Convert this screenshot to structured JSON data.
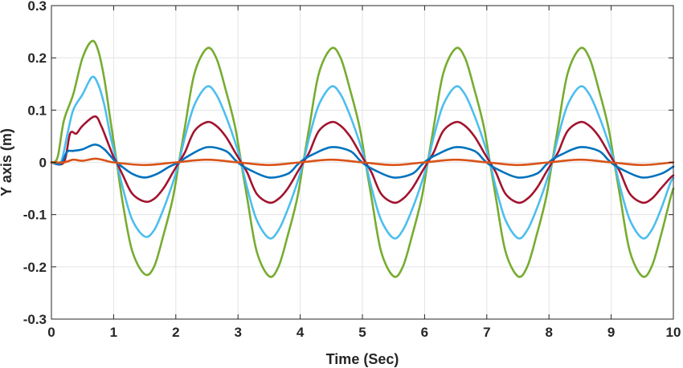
{
  "chart_data": {
    "type": "line",
    "title": "",
    "xlabel": "Time (Sec)",
    "ylabel": "Y axis (m)",
    "xlim": [
      0,
      10
    ],
    "ylim": [
      -0.3,
      0.3
    ],
    "xticks": [
      0,
      1,
      2,
      3,
      4,
      5,
      6,
      7,
      8,
      9,
      10
    ],
    "xtick_labels": [
      "0",
      "1",
      "2",
      "3",
      "4",
      "5",
      "6",
      "7",
      "8",
      "9",
      "10"
    ],
    "yticks": [
      -0.3,
      -0.2,
      -0.1,
      0,
      0.1,
      0.2,
      0.3
    ],
    "ytick_labels": [
      "-0.3",
      "-0.2",
      "-0.1",
      "0",
      "0.1",
      "0.2",
      "0.3"
    ],
    "grid": true,
    "legend": "none",
    "series": [
      {
        "color": "#77ac30",
        "x": [
          0,
          0.1,
          0.2,
          0.35,
          0.5,
          0.65,
          0.75,
          0.85,
          0.95,
          1.05,
          1.15,
          1.3,
          1.5,
          1.65,
          1.8,
          1.95,
          2.05,
          2.15,
          2.3,
          2.5,
          2.65,
          2.8,
          2.95,
          3.05,
          3.15,
          3.3,
          3.5,
          3.65,
          3.8,
          3.95,
          4.05,
          4.15,
          4.3,
          4.5,
          4.65,
          4.8,
          4.95,
          5.05,
          5.15,
          5.3,
          5.5,
          5.65,
          5.8,
          5.95,
          6.05,
          6.15,
          6.3,
          6.5,
          6.65,
          6.8,
          6.95,
          7.05,
          7.15,
          7.3,
          7.5,
          7.65,
          7.8,
          7.95,
          8.05,
          8.15,
          8.3,
          8.5,
          8.65,
          8.8,
          8.95,
          9.05,
          9.15,
          9.3,
          9.5,
          9.65,
          9.8,
          9.95,
          10
        ],
        "y": [
          0,
          0.01,
          0.08,
          0.13,
          0.2,
          0.232,
          0.215,
          0.16,
          0.08,
          0.0,
          -0.08,
          -0.17,
          -0.214,
          -0.2,
          -0.14,
          -0.07,
          0.0,
          0.07,
          0.17,
          0.218,
          0.2,
          0.14,
          0.07,
          0.0,
          -0.07,
          -0.17,
          -0.218,
          -0.2,
          -0.14,
          -0.07,
          0.0,
          0.07,
          0.17,
          0.218,
          0.2,
          0.14,
          0.07,
          0.0,
          -0.07,
          -0.17,
          -0.218,
          -0.2,
          -0.14,
          -0.07,
          0.0,
          0.07,
          0.17,
          0.218,
          0.2,
          0.14,
          0.07,
          0.0,
          -0.07,
          -0.17,
          -0.218,
          -0.2,
          -0.14,
          -0.07,
          0.0,
          0.07,
          0.17,
          0.218,
          0.2,
          0.14,
          0.07,
          0.0,
          -0.07,
          -0.17,
          -0.218,
          -0.2,
          -0.14,
          -0.07,
          -0.05
        ]
      },
      {
        "color": "#4dbeee",
        "x": [
          0,
          0.15,
          0.25,
          0.35,
          0.5,
          0.65,
          0.75,
          0.85,
          0.95,
          1.05,
          1.15,
          1.3,
          1.5,
          1.65,
          1.8,
          1.95,
          2.05,
          2.15,
          2.3,
          2.5,
          2.65,
          2.8,
          2.95,
          3.05,
          3.15,
          3.3,
          3.5,
          3.65,
          3.8,
          3.95,
          4.05,
          4.15,
          4.3,
          4.5,
          4.65,
          4.8,
          4.95,
          5.05,
          5.15,
          5.3,
          5.5,
          5.65,
          5.8,
          5.95,
          6.05,
          6.15,
          6.3,
          6.5,
          6.65,
          6.8,
          6.95,
          7.05,
          7.15,
          7.3,
          7.5,
          7.65,
          7.8,
          7.95,
          8.05,
          8.15,
          8.3,
          8.5,
          8.65,
          8.8,
          8.95,
          9.05,
          9.15,
          9.3,
          9.5,
          9.65,
          9.8,
          9.95,
          10
        ],
        "y": [
          0,
          0.0,
          0.05,
          0.1,
          0.13,
          0.163,
          0.15,
          0.11,
          0.05,
          0.0,
          -0.05,
          -0.11,
          -0.142,
          -0.13,
          -0.09,
          -0.04,
          0.0,
          0.05,
          0.11,
          0.145,
          0.13,
          0.09,
          0.04,
          0.0,
          -0.05,
          -0.11,
          -0.145,
          -0.13,
          -0.09,
          -0.04,
          0.0,
          0.05,
          0.11,
          0.145,
          0.13,
          0.09,
          0.04,
          0.0,
          -0.05,
          -0.11,
          -0.145,
          -0.13,
          -0.09,
          -0.04,
          0.0,
          0.05,
          0.11,
          0.145,
          0.13,
          0.09,
          0.04,
          0.0,
          -0.05,
          -0.11,
          -0.145,
          -0.13,
          -0.09,
          -0.04,
          0.0,
          0.05,
          0.11,
          0.145,
          0.13,
          0.09,
          0.04,
          0.0,
          -0.05,
          -0.11,
          -0.145,
          -0.13,
          -0.09,
          -0.04,
          -0.03
        ]
      },
      {
        "color": "#a2142f",
        "x": [
          0,
          0.2,
          0.3,
          0.4,
          0.5,
          0.7,
          0.8,
          0.9,
          1.0,
          1.05,
          1.15,
          1.3,
          1.5,
          1.65,
          1.8,
          1.95,
          2.05,
          2.15,
          2.3,
          2.5,
          2.65,
          2.8,
          2.95,
          3.05,
          3.15,
          3.3,
          3.5,
          3.65,
          3.8,
          3.95,
          4.05,
          4.15,
          4.3,
          4.5,
          4.65,
          4.8,
          4.95,
          5.05,
          5.15,
          5.3,
          5.5,
          5.65,
          5.8,
          5.95,
          6.05,
          6.15,
          6.3,
          6.5,
          6.65,
          6.8,
          6.95,
          7.05,
          7.15,
          7.3,
          7.5,
          7.65,
          7.8,
          7.95,
          8.05,
          8.15,
          8.3,
          8.5,
          8.65,
          8.8,
          8.95,
          9.05,
          9.15,
          9.3,
          9.5,
          9.65,
          9.8,
          9.95,
          10
        ],
        "y": [
          0,
          0.0,
          0.055,
          0.055,
          0.07,
          0.088,
          0.07,
          0.04,
          0.01,
          0.0,
          -0.025,
          -0.06,
          -0.075,
          -0.07,
          -0.05,
          -0.02,
          0.0,
          0.02,
          0.06,
          0.077,
          0.07,
          0.05,
          0.02,
          0.0,
          -0.02,
          -0.06,
          -0.077,
          -0.07,
          -0.05,
          -0.02,
          0.0,
          0.02,
          0.06,
          0.077,
          0.07,
          0.05,
          0.02,
          0.0,
          -0.02,
          -0.06,
          -0.077,
          -0.07,
          -0.05,
          -0.02,
          0.0,
          0.02,
          0.06,
          0.077,
          0.07,
          0.05,
          0.02,
          0.0,
          -0.02,
          -0.06,
          -0.077,
          -0.07,
          -0.05,
          -0.02,
          0.0,
          0.02,
          0.06,
          0.077,
          0.07,
          0.05,
          0.02,
          0.0,
          -0.02,
          -0.06,
          -0.077,
          -0.07,
          -0.05,
          -0.03,
          -0.025
        ]
      },
      {
        "color": "#0072bd",
        "x": [
          0,
          0.15,
          0.25,
          0.35,
          0.5,
          0.7,
          0.85,
          1.0,
          1.1,
          1.3,
          1.5,
          1.7,
          1.9,
          2.05,
          2.2,
          2.5,
          2.8,
          2.95,
          3.05,
          3.2,
          3.5,
          3.8,
          3.95,
          4.05,
          4.2,
          4.5,
          4.8,
          4.95,
          5.05,
          5.2,
          5.5,
          5.8,
          5.95,
          6.05,
          6.2,
          6.5,
          6.8,
          6.95,
          7.05,
          7.2,
          7.5,
          7.8,
          7.95,
          8.05,
          8.2,
          8.5,
          8.8,
          8.95,
          9.05,
          9.2,
          9.5,
          9.8,
          10
        ],
        "y": [
          0,
          -0.003,
          0.02,
          0.022,
          0.025,
          0.034,
          0.025,
          0.005,
          -0.005,
          -0.022,
          -0.029,
          -0.022,
          -0.008,
          0.0,
          0.012,
          0.029,
          0.022,
          0.005,
          -0.005,
          -0.015,
          -0.029,
          -0.022,
          -0.005,
          0.005,
          0.015,
          0.029,
          0.022,
          0.005,
          -0.005,
          -0.015,
          -0.029,
          -0.022,
          -0.005,
          0.005,
          0.015,
          0.029,
          0.022,
          0.005,
          -0.005,
          -0.015,
          -0.029,
          -0.022,
          -0.005,
          0.005,
          0.015,
          0.029,
          0.022,
          0.005,
          -0.005,
          -0.015,
          -0.029,
          -0.022,
          -0.008
        ]
      },
      {
        "color": "#d95319",
        "x": [
          0,
          0.2,
          0.35,
          0.5,
          0.7,
          0.85,
          1.0,
          1.5,
          2.0,
          2.5,
          3.0,
          3.5,
          4.0,
          4.5,
          5.0,
          5.5,
          6.0,
          6.5,
          7.0,
          7.5,
          8.0,
          8.5,
          9.0,
          9.5,
          10
        ],
        "y": [
          0,
          0.0,
          0.005,
          0.003,
          0.007,
          0.004,
          0.0,
          -0.005,
          0.0,
          0.005,
          0.0,
          -0.005,
          0.0,
          0.005,
          0.0,
          -0.005,
          0.0,
          0.005,
          0.0,
          -0.005,
          0.0,
          0.005,
          0.0,
          -0.005,
          0.0
        ]
      }
    ]
  }
}
